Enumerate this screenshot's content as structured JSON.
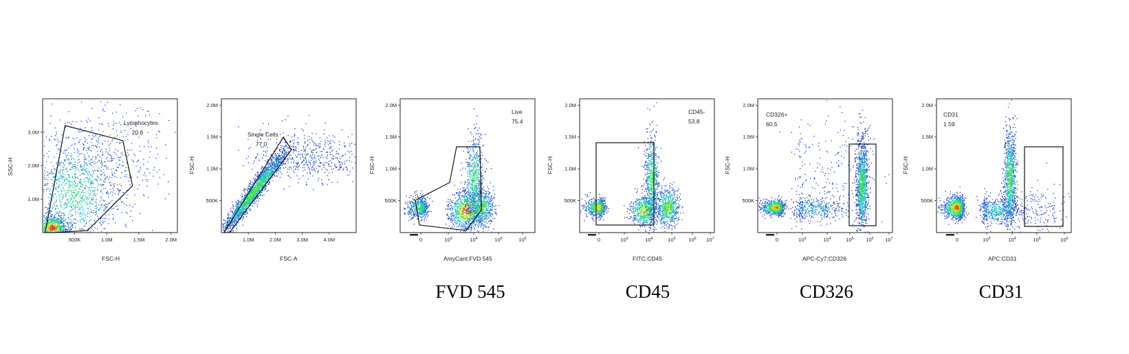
{
  "figure_captions": [
    "FVD 545",
    "CD45",
    "CD326",
    "CD31"
  ],
  "colors": {
    "density_low": "#1c1cd0",
    "density_mid": "#19c8c8",
    "density_mid2": "#3ce13c",
    "density_high": "#e6e61e",
    "density_peak": "#e11e1e",
    "gate": "#111111",
    "frame": "#222222"
  },
  "chart_data": [
    {
      "type": "scatter",
      "subtype": "density dot plot",
      "xlabel": "FSC-H",
      "ylabel": "SSC-H",
      "x_ticks": [
        "500K",
        "1.0M",
        "1.5M",
        "2.0M"
      ],
      "y_ticks": [
        "1.0M",
        "2.0M",
        "3.0M"
      ],
      "xlim": [
        0,
        2100000.0
      ],
      "ylim": [
        0,
        4000000.0
      ],
      "gate": {
        "name": "Lymphocytes",
        "value": "20.6",
        "shape": "polygon",
        "vertices": [
          [
            40000,
            0
          ],
          [
            350000,
            3200000.0
          ],
          [
            1250000.0,
            2750000.0
          ],
          [
            1400000.0,
            1400000.0
          ],
          [
            700000,
            60000
          ],
          [
            150000,
            0
          ]
        ]
      },
      "populations": [
        {
          "center": [
            150000,
            150000
          ],
          "spread": [
            120000,
            200000
          ],
          "weight": 0.35,
          "level": 0.95
        },
        {
          "center": [
            500000,
            1200000.0
          ],
          "spread": [
            350000,
            800000
          ],
          "weight": 0.5,
          "level": 0.45
        },
        {
          "center": [
            1000000.0,
            2200000.0
          ],
          "spread": [
            500000,
            900000
          ],
          "weight": 0.15,
          "level": 0.1
        }
      ]
    },
    {
      "type": "scatter",
      "subtype": "density dot plot",
      "xlabel": "FSC-A",
      "ylabel": "FSC-H",
      "x_ticks": [
        "1.0M",
        "2.0M",
        "3.0M",
        "4.0M"
      ],
      "y_ticks": [
        "500K",
        "1.0M",
        "1.5M",
        "2.0M"
      ],
      "xlim": [
        0,
        5000000.0
      ],
      "ylim": [
        0,
        2100000.0
      ],
      "gate": {
        "name": "Single Cells",
        "value": "77.0",
        "shape": "polygon",
        "vertices": [
          [
            100000,
            0
          ],
          [
            2300000.0,
            1500000.0
          ],
          [
            2600000.0,
            1300000.0
          ],
          [
            300000,
            0
          ]
        ]
      },
      "populations": [
        {
          "center": [
            1200000.0,
            650000
          ],
          "spread": [
            600000,
            350000
          ],
          "weight": 0.8,
          "level": 0.6,
          "diagonal": true
        },
        {
          "center": [
            3200000.0,
            1200000.0
          ],
          "spread": [
            1000000.0,
            200000
          ],
          "weight": 0.2,
          "level": 0.05
        }
      ]
    },
    {
      "type": "scatter",
      "subtype": "density dot plot",
      "xlabel": "AmyCant:FVD 545",
      "ylabel": "FSC-H",
      "caption": "FVD 545",
      "x_ticks": [
        "0",
        "10^3",
        "10^4",
        "10^5",
        "10^6"
      ],
      "y_ticks": [
        "500K",
        "1.0M",
        "1.5M",
        "2.0M"
      ],
      "ylim": [
        0,
        2100000.0
      ],
      "gate": {
        "name": "Live",
        "value": "75.4",
        "shape": "polygon"
      },
      "populations": [
        {
          "center": [
            "0",
            400000
          ],
          "spread": [
            0.35,
            80000
          ],
          "weight": 0.2,
          "level": 0.5
        },
        {
          "center": [
            "10^3.7",
            350000
          ],
          "spread": [
            0.35,
            150000
          ],
          "weight": 0.35,
          "level": 0.9
        },
        {
          "center": [
            "10^4",
            850000
          ],
          "spread": [
            0.18,
            350000
          ],
          "weight": 0.25,
          "level": 0.5
        },
        {
          "center": [
            "10^4.3",
            400000
          ],
          "spread": [
            0.25,
            150000
          ],
          "weight": 0.2,
          "level": 0.6
        }
      ]
    },
    {
      "type": "scatter",
      "subtype": "density dot plot",
      "xlabel": "FITC:CD45",
      "ylabel": "FSC-H",
      "caption": "CD45",
      "x_ticks": [
        "0",
        "10^3",
        "10^4",
        "10^5",
        "10^6",
        "10^7"
      ],
      "y_ticks": [
        "500K",
        "1.0M",
        "1.5M",
        "2.0M"
      ],
      "ylim": [
        0,
        2100000.0
      ],
      "gate": {
        "name": "CD45-",
        "value": "53.8",
        "shape": "rectangle"
      },
      "populations": [
        {
          "center": [
            "0",
            400000
          ],
          "spread": [
            0.35,
            70000
          ],
          "weight": 0.25,
          "level": 0.8
        },
        {
          "center": [
            "10^3.8",
            350000
          ],
          "spread": [
            0.3,
            130000
          ],
          "weight": 0.25,
          "level": 0.7
        },
        {
          "center": [
            "10^4.1",
            850000
          ],
          "spread": [
            0.15,
            350000
          ],
          "weight": 0.25,
          "level": 0.55
        },
        {
          "center": [
            "10^4.8",
            400000
          ],
          "spread": [
            0.25,
            150000
          ],
          "weight": 0.25,
          "level": 0.65
        }
      ]
    },
    {
      "type": "scatter",
      "subtype": "density dot plot",
      "xlabel": "APC-Cy7:CD326",
      "ylabel": "FSC-H",
      "caption": "CD326",
      "x_ticks": [
        "0",
        "10^3",
        "10^4",
        "10^5",
        "10^6",
        "10^7"
      ],
      "y_ticks": [
        "500K",
        "1.0M",
        "1.5M",
        "2.0M"
      ],
      "ylim": [
        0,
        2100000.0
      ],
      "gate": {
        "name": "CD326+",
        "value": "60.5",
        "shape": "rectangle"
      },
      "populations": [
        {
          "center": [
            "0",
            400000
          ],
          "spread": [
            0.4,
            60000
          ],
          "weight": 0.3,
          "level": 0.9
        },
        {
          "center": [
            "10^3.4",
            380000
          ],
          "spread": [
            0.7,
            90000
          ],
          "weight": 0.15,
          "level": 0.25
        },
        {
          "center": [
            "10^5.6",
            750000
          ],
          "spread": [
            0.15,
            350000
          ],
          "weight": 0.45,
          "level": 0.55
        },
        {
          "center": [
            "10^4",
            900000
          ],
          "spread": [
            1.2,
            500000
          ],
          "weight": 0.1,
          "level": 0.05
        }
      ]
    },
    {
      "type": "scatter",
      "subtype": "density dot plot",
      "xlabel": "APC:CD31",
      "ylabel": "FSC-H",
      "caption": "CD31",
      "x_ticks": [
        "0",
        "10^3",
        "10^4",
        "10^5",
        "10^6"
      ],
      "y_ticks": [
        "500K",
        "1.0M",
        "1.5M",
        "2.0M"
      ],
      "ylim": [
        0,
        2100000.0
      ],
      "gate": {
        "name": "CD31",
        "value": "1.59",
        "shape": "rectangle"
      },
      "populations": [
        {
          "center": [
            "0",
            400000
          ],
          "spread": [
            0.35,
            90000
          ],
          "weight": 0.35,
          "level": 0.95
        },
        {
          "center": [
            "10^3.4",
            350000
          ],
          "spread": [
            0.5,
            120000
          ],
          "weight": 0.2,
          "level": 0.3
        },
        {
          "center": [
            "10^3.9",
            850000
          ],
          "spread": [
            0.12,
            380000
          ],
          "weight": 0.38,
          "level": 0.55
        },
        {
          "center": [
            "10^5",
            350000
          ],
          "spread": [
            0.6,
            200000
          ],
          "weight": 0.07,
          "level": 0.05
        }
      ]
    }
  ]
}
